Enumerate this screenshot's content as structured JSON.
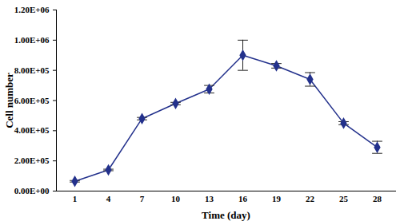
{
  "chart_data": {
    "type": "line",
    "x_label": "Time (day)",
    "y_label": "Cell number",
    "categories": [
      "1",
      "4",
      "7",
      "10",
      "13",
      "16",
      "19",
      "22",
      "25",
      "28"
    ],
    "values": [
      65000,
      140000,
      480000,
      580000,
      675000,
      900000,
      830000,
      740000,
      450000,
      290000
    ],
    "errors": [
      5000,
      5000,
      8000,
      8000,
      25000,
      100000,
      15000,
      45000,
      10000,
      40000
    ],
    "color": "#23318c",
    "marker": "diamond",
    "ylim": [
      0,
      1200000
    ],
    "yticks": [
      {
        "value": 0,
        "label": "0.00E+00"
      },
      {
        "value": 200000,
        "label": "2.00E+05"
      },
      {
        "value": 400000,
        "label": "4.00E+05"
      },
      {
        "value": 600000,
        "label": "6.00E+05"
      },
      {
        "value": 800000,
        "label": "8.00E+05"
      },
      {
        "value": 1000000,
        "label": "1.00E+06"
      },
      {
        "value": 1200000,
        "label": "1.20E+06"
      }
    ],
    "grid": false
  }
}
